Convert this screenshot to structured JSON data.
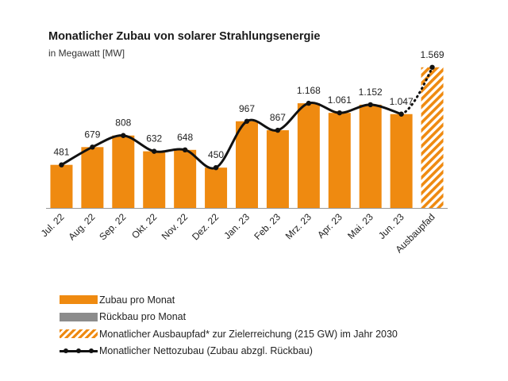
{
  "header": {
    "title": "Monatlicher Zubau von solarer Strahlungsenergie",
    "subtitle": "in Megawatt [MW]"
  },
  "colors": {
    "bar": "#ef8a10",
    "line": "#111111",
    "gray": "#8c8c8c"
  },
  "chart_data": {
    "type": "bar",
    "title": "Monatlicher Zubau von solarer Strahlungsenergie",
    "subtitle": "in Megawatt [MW]",
    "categories": [
      "Jul. 22",
      "Aug. 22",
      "Sep. 22",
      "Okt. 22",
      "Nov. 22",
      "Dez. 22",
      "Jan. 23",
      "Feb. 23",
      "Mrz. 23",
      "Apr. 23",
      "Mai. 23",
      "Jun. 23",
      "Ausbaupfad"
    ],
    "series": [
      {
        "name": "Zubau pro Monat",
        "type": "bar",
        "values": [
          481,
          679,
          808,
          632,
          648,
          450,
          967,
          867,
          1168,
          1061,
          1152,
          1047,
          null
        ]
      },
      {
        "name": "Monatlicher Ausbaupfad* zur Zielerreichung (215 GW) im Jahr 2030",
        "type": "bar-hatched",
        "values": [
          null,
          null,
          null,
          null,
          null,
          null,
          null,
          null,
          null,
          null,
          null,
          null,
          1569
        ]
      },
      {
        "name": "Monatlicher Nettozubau (Zubau abzgl. Rückbau)",
        "type": "line",
        "values": [
          481,
          679,
          808,
          632,
          648,
          450,
          967,
          867,
          1168,
          1061,
          1152,
          1047,
          1569
        ]
      }
    ],
    "data_labels": [
      "481",
      "679",
      "808",
      "632",
      "648",
      "450",
      "967",
      "867",
      "1.168",
      "1.061",
      "1.152",
      "1.047",
      "1.569"
    ],
    "ylim": [
      0,
      1700
    ],
    "grid": false,
    "legend_position": "bottom-left"
  },
  "legend": [
    {
      "label": "Zubau pro Monat",
      "style": "solid"
    },
    {
      "label": "Rückbau pro Monat",
      "style": "gray"
    },
    {
      "label": "Monatlicher Ausbaupfad* zur Zielerreichung (215 GW) im Jahr 2030",
      "style": "hatch"
    },
    {
      "label": "Monatlicher Nettozubau (Zubau abzgl. Rückbau)",
      "style": "line"
    }
  ]
}
